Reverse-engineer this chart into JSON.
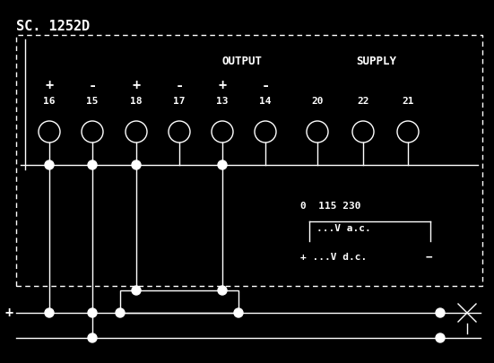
{
  "bg_color": "#000000",
  "fg_color": "#ffffff",
  "title": "SC. 1252D",
  "output_label": "OUTPUT",
  "supply_label": "SUPPLY",
  "terminal_numbers": [
    "16",
    "15",
    "18",
    "17",
    "13",
    "14",
    "20",
    "22",
    "21"
  ],
  "terminal_signs": [
    "+",
    "-",
    "+",
    "-",
    "+",
    "-",
    "",
    "",
    ""
  ],
  "voltage_text1": "0  115 230",
  "voltage_text2": "...V a.c.",
  "voltage_text3": "+ ...V d.c.",
  "font_size_title": 11,
  "font_size_labels": 9,
  "font_size_numbers": 8,
  "font_size_voltage": 8,
  "lw": 1.0
}
